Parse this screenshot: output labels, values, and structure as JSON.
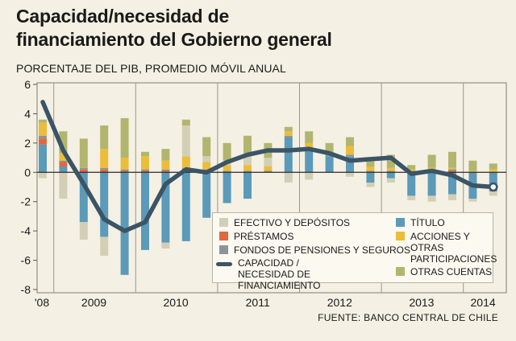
{
  "chart_data": {
    "type": "bar",
    "title": "Capacidad/necesidad de financiamiento del Gobierno general",
    "subtitle": "PORCENTAJE DEL PIB, PROMEDIO MÓVIL ANUAL",
    "ylim": [
      -8,
      6
    ],
    "yticks": [
      6,
      4,
      2,
      0,
      -2,
      -4,
      -6,
      -8
    ],
    "x_labels": [
      "'08",
      "2009",
      "2010",
      "2011",
      "2012",
      "2013",
      "2014"
    ],
    "categories": [
      "2008-Q4",
      "2009-Q1",
      "2009-Q2",
      "2009-Q3",
      "2009-Q4",
      "2010-Q1",
      "2010-Q2",
      "2010-Q3",
      "2010-Q4",
      "2011-Q1",
      "2011-Q2",
      "2011-Q3",
      "2011-Q4",
      "2012-Q1",
      "2012-Q2",
      "2012-Q3",
      "2012-Q4",
      "2013-Q1",
      "2013-Q2",
      "2013-Q3",
      "2013-Q4",
      "2014-Q1",
      "2014-Q2"
    ],
    "series": [
      {
        "name": "TÍTULO",
        "color": "#5b9ab8",
        "values": [
          1.9,
          0.4,
          -3.4,
          -4.4,
          -7.0,
          -5.3,
          -4.8,
          -4.7,
          -3.1,
          -2.1,
          -1.8,
          0.0,
          2.4,
          1.5,
          1.1,
          1.1,
          -0.7,
          -0.4,
          -1.6,
          -1.6,
          -1.5,
          -1.8,
          -1.3
        ]
      },
      {
        "name": "PRÉSTAMOS",
        "color": "#e2673d",
        "values": [
          0.4,
          0.3,
          0.2,
          0.2,
          0.1,
          0.1,
          0.1,
          0.2,
          0.1,
          0.0,
          0.0,
          0.0,
          0.0,
          0.1,
          0.0,
          0.0,
          0.0,
          0.0,
          0.0,
          0.0,
          0.1,
          0.0,
          0.0
        ]
      },
      {
        "name": "FONDOS DE PENSIONES Y SEGUROS",
        "color": "#8c949a",
        "values": [
          0.2,
          0.1,
          0.1,
          0.1,
          0.1,
          0.1,
          0.1,
          0.1,
          0.1,
          0.1,
          0.1,
          0.1,
          0.1,
          0.1,
          0.1,
          0.1,
          0.1,
          0.1,
          0.1,
          0.1,
          0.1,
          0.0,
          0.0
        ]
      },
      {
        "name": "ACCIONES Y OTRAS PARTICIPACIONES",
        "color": "#ebbd3a",
        "values": [
          0.9,
          0.5,
          0.0,
          1.3,
          0.8,
          0.9,
          0.6,
          0.8,
          0.5,
          0.4,
          0.4,
          0.3,
          0.3,
          0.3,
          0.2,
          0.6,
          0.3,
          0.2,
          0.1,
          0.2,
          0.1,
          0.1,
          0.2
        ]
      },
      {
        "name": "EFECTIVO Y DEPÓSITOS",
        "color": "#d2cfb6",
        "values": [
          -0.4,
          -1.8,
          -1.2,
          -1.3,
          0.0,
          0.0,
          -0.4,
          2.1,
          0.4,
          0.3,
          0.8,
          0.6,
          -0.7,
          -0.5,
          0.0,
          -0.3,
          -0.3,
          -0.3,
          -0.3,
          -0.4,
          -0.4,
          -0.2,
          -0.3
        ]
      },
      {
        "name": "OTRAS CUENTAS",
        "color": "#b2b56e",
        "values": [
          0.2,
          1.5,
          2.0,
          1.6,
          2.7,
          0.3,
          0.8,
          0.4,
          1.3,
          1.2,
          1.2,
          1.0,
          0.3,
          0.8,
          0.6,
          0.6,
          0.6,
          0.9,
          0.3,
          0.9,
          1.1,
          0.7,
          0.4
        ]
      },
      {
        "name": "CAPACIDAD / NECESIDAD DE FINANCIAMIENTO",
        "color": "#3b5466",
        "kind": "line",
        "values": [
          4.8,
          1.5,
          -0.8,
          -3.2,
          -4.0,
          -3.4,
          -0.8,
          0.2,
          0.0,
          0.7,
          1.2,
          1.5,
          1.5,
          1.6,
          1.3,
          0.8,
          0.9,
          1.0,
          -0.1,
          0.1,
          -0.2,
          -0.9,
          -1.0
        ]
      }
    ]
  },
  "legend": [
    {
      "label": "EFECTIVO Y DEPÓSITOS",
      "color": "#d2cfb6"
    },
    {
      "label": "PRÉSTAMOS",
      "color": "#e2673d"
    },
    {
      "label": "FONDOS DE PENSIONES Y SEGUROS",
      "color": "#8c949a"
    },
    {
      "label": "CAPACIDAD / NECESIDAD DE FINANCIAMIENTO",
      "color": "#3b5466"
    },
    {
      "label": "TÍTULO",
      "color": "#5b9ab8"
    },
    {
      "label": "ACCIONES Y OTRAS PARTICIPACIONES",
      "color": "#ebbd3a"
    },
    {
      "label": "OTRAS CUENTAS",
      "color": "#b2b56e"
    }
  ],
  "source": "FUENTE: BANCO CENTRAL DE CHILE"
}
